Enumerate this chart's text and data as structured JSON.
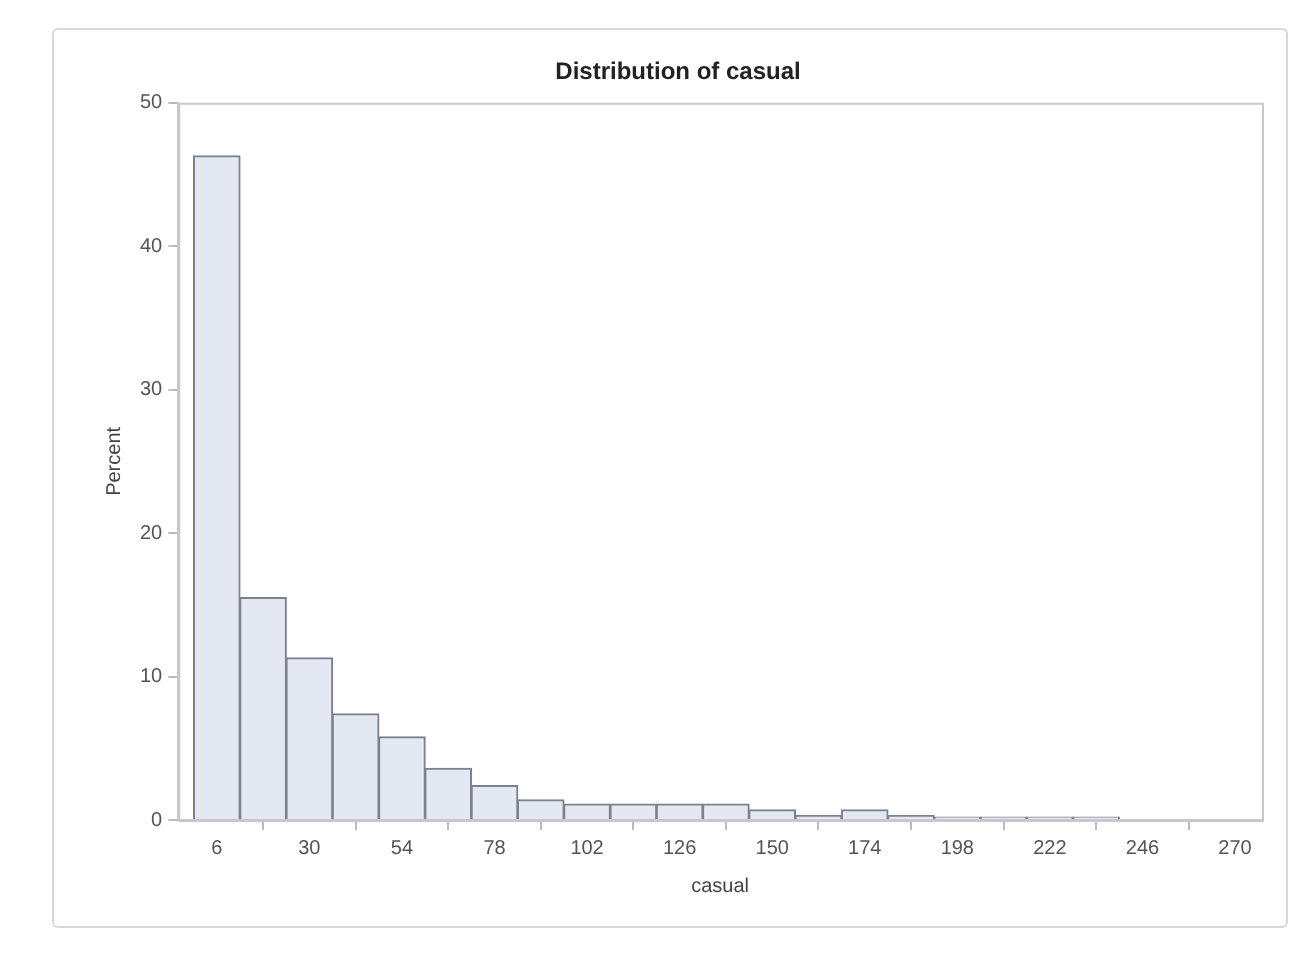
{
  "chart_data": {
    "type": "histogram",
    "title": "Distribution of casual",
    "xlabel": "casual",
    "ylabel": "Percent",
    "bins": [
      0,
      12,
      24,
      36,
      48,
      60,
      72,
      84,
      96,
      108,
      120,
      132,
      144,
      156,
      168,
      180,
      192,
      204,
      216,
      228,
      240
    ],
    "values": [
      46.3,
      15.5,
      11.3,
      7.4,
      5.8,
      3.6,
      2.4,
      1.4,
      1.1,
      1.1,
      1.1,
      1.1,
      0.7,
      0.3,
      0.7,
      0.3,
      0.2,
      0.2,
      0.2,
      0.2
    ],
    "color": "#e3e8f2",
    "xlim": [
      -4,
      277
    ],
    "xticks": [
      6,
      30,
      54,
      78,
      102,
      126,
      150,
      174,
      198,
      222,
      246,
      270
    ],
    "ylim": [
      0,
      50
    ],
    "yticks": [
      0,
      10,
      20,
      30,
      40,
      50
    ],
    "grid": false,
    "legend": false
  }
}
